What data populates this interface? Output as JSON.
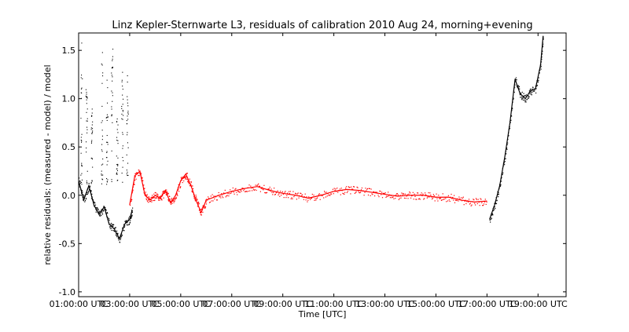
{
  "chart_data": {
    "type": "scatter",
    "title": "Linz Kepler-Sternwarte L3, residuals of calibration 2010 Aug 24, morning+evening",
    "xlabel": "Time [UTC]",
    "ylabel": "relative residuals: (measured - model) / model",
    "xlim": [
      1.0,
      20.1
    ],
    "ylim": [
      -1.05,
      1.68
    ],
    "x_tick_values": [
      1,
      3,
      5,
      7,
      9,
      11,
      13,
      15,
      17,
      19
    ],
    "x_tick_labels": [
      "01:00:00 UTC",
      "03:00:00 UTC",
      "05:00:00 UTC",
      "07:00:00 UTC",
      "09:00:00 UTC",
      "11:00:00 UTC",
      "13:00:00 UTC",
      "15:00:00 UTC",
      "17:00:00 UTC",
      "19:00:00 UTC"
    ],
    "y_tick_values": [
      -1.0,
      -0.5,
      0.0,
      0.5,
      1.0,
      1.5
    ],
    "y_tick_labels": [
      "-1.0",
      "-0.5",
      "0.0",
      "0.5",
      "1.0",
      "1.5"
    ],
    "grid": false,
    "series": [
      {
        "color": "#000000",
        "marker": "point",
        "segments": [
          {
            "x": [
              1.0,
              1.2,
              1.4,
              1.6,
              1.8,
              2.0,
              2.2,
              2.4,
              2.6,
              2.8,
              3.0,
              3.1
            ],
            "y": [
              0.15,
              -0.05,
              0.1,
              -0.1,
              -0.2,
              -0.12,
              -0.3,
              -0.35,
              -0.45,
              -0.3,
              -0.25,
              -0.15
            ]
          },
          {
            "x": [
              17.1,
              17.3,
              17.5,
              17.7,
              17.9,
              18.1,
              18.3,
              18.5,
              18.7,
              18.9,
              19.1,
              19.2
            ],
            "y": [
              -0.25,
              -0.1,
              0.1,
              0.4,
              0.75,
              1.2,
              1.05,
              1.0,
              1.08,
              1.1,
              1.35,
              1.65
            ]
          }
        ],
        "outliers": [
          {
            "x": [
              1.1,
              1.3,
              1.5,
              1.9,
              2.1,
              2.3,
              2.5,
              2.7,
              2.9
            ],
            "y": [
              1.6,
              1.1,
              0.9,
              1.5,
              1.2,
              1.62,
              0.8,
              1.45,
              1.25
            ]
          }
        ]
      },
      {
        "color": "#ff0000",
        "marker": "point",
        "segments": [
          {
            "x": [
              3.0,
              3.2,
              3.4,
              3.6,
              3.8,
              4.0,
              4.2,
              4.4,
              4.6,
              4.8,
              5.0,
              5.2,
              5.4,
              5.6,
              5.8,
              6.0
            ],
            "y": [
              -0.1,
              0.2,
              0.25,
              0.0,
              -0.05,
              0.0,
              -0.03,
              0.05,
              -0.08,
              0.0,
              0.15,
              0.22,
              0.1,
              -0.05,
              -0.18,
              -0.05
            ]
          },
          {
            "x": [
              6.0,
              6.5,
              7.0,
              7.5,
              8.0,
              8.5,
              9.0,
              9.5,
              10.0,
              10.5,
              11.0,
              11.5,
              12.0,
              12.5,
              13.0,
              13.5,
              14.0,
              14.5,
              15.0,
              15.5,
              16.0,
              16.5,
              17.0
            ],
            "y": [
              -0.05,
              0.0,
              0.04,
              0.07,
              0.09,
              0.05,
              0.02,
              0.0,
              -0.03,
              0.0,
              0.04,
              0.06,
              0.05,
              0.03,
              0.01,
              -0.01,
              0.0,
              0.0,
              -0.02,
              -0.02,
              -0.05,
              -0.07,
              -0.06
            ]
          }
        ],
        "outliers": []
      }
    ]
  }
}
